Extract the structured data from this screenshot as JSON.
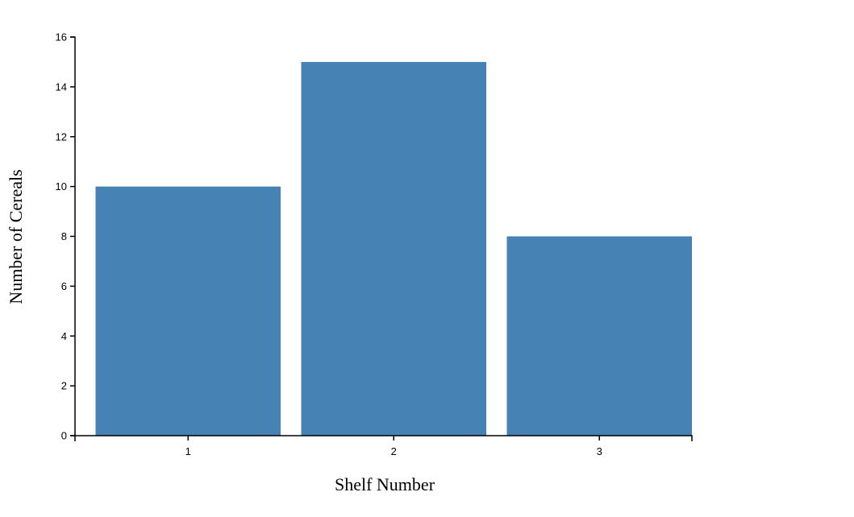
{
  "chart_data": {
    "type": "bar",
    "categories": [
      "1",
      "2",
      "3"
    ],
    "values": [
      10,
      15,
      8
    ],
    "title": "",
    "xlabel": "Shelf Number",
    "ylabel": "Number of Cereals",
    "ylim": [
      0,
      16
    ],
    "yticks": [
      0,
      2,
      4,
      6,
      8,
      10,
      12,
      14,
      16
    ],
    "grid": false,
    "bar_color": "#4682b4"
  }
}
